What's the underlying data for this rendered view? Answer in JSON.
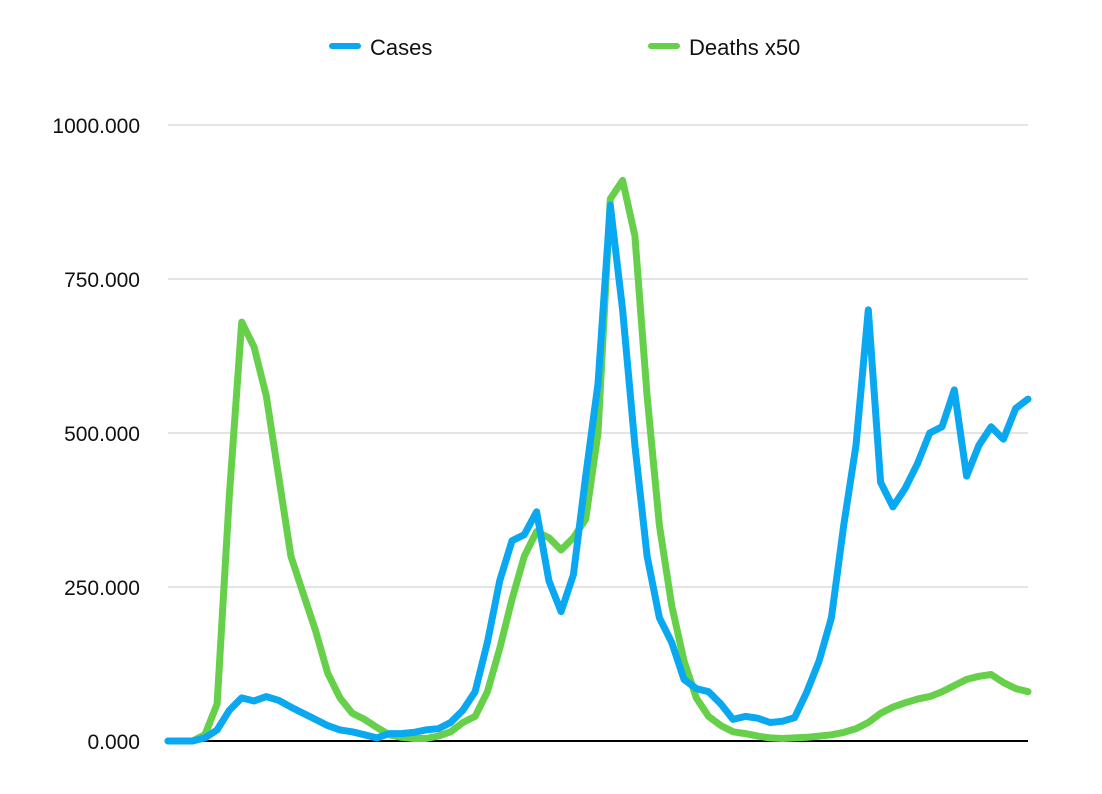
{
  "chart_data": {
    "type": "line",
    "title": "",
    "xlabel": "",
    "ylabel": "",
    "ylim": [
      0,
      1000
    ],
    "y_ticks": [
      0,
      250,
      500,
      750,
      1000
    ],
    "y_tick_labels": [
      "0.000",
      "250.000",
      "500.000",
      "750.000",
      "1000.000"
    ],
    "x_ticks_visible": false,
    "grid": "horizontal",
    "legend_position": "top-center",
    "x": [
      0,
      10,
      20,
      30,
      40,
      50,
      60,
      70,
      80,
      90,
      100,
      110,
      120,
      130,
      140,
      150,
      160,
      170,
      180,
      190,
      200,
      210,
      220,
      230,
      240,
      250,
      260,
      270,
      280,
      290,
      300,
      310,
      320,
      330,
      340,
      350,
      360,
      370,
      380,
      390,
      400,
      410,
      420,
      430,
      440,
      450,
      460,
      470,
      480,
      490,
      500
    ],
    "series": [
      {
        "name": "Cases",
        "color": "#0aa8f0",
        "values": [
          0,
          0,
          0,
          5,
          18,
          50,
          70,
          65,
          72,
          66,
          55,
          45,
          35,
          25,
          18,
          15,
          10,
          5,
          12,
          12,
          14,
          18,
          20,
          30,
          50,
          80,
          160,
          260,
          325,
          335,
          372,
          260,
          210,
          270,
          430,
          580,
          870,
          700,
          480,
          300,
          200,
          160,
          100,
          85,
          80,
          60,
          35,
          40,
          37,
          30,
          32
        ]
      },
      {
        "name": "Deaths x50",
        "color": "#66d04a",
        "values": [
          0,
          0,
          0,
          10,
          60,
          400,
          680,
          640,
          560,
          430,
          300,
          240,
          180,
          110,
          70,
          45,
          35,
          22,
          10,
          6,
          4,
          4,
          8,
          15,
          30,
          40,
          80,
          150,
          230,
          300,
          340,
          330,
          310,
          330,
          360,
          500,
          880,
          910,
          820,
          560,
          350,
          220,
          130,
          70,
          40,
          25,
          15,
          12,
          8,
          5,
          4
        ]
      }
    ],
    "tail": {
      "x": [
        510,
        520,
        530,
        540,
        550,
        560,
        570,
        580,
        590,
        600,
        610,
        620,
        630,
        640,
        650,
        660,
        670,
        680,
        690,
        700
      ],
      "Cases": [
        38,
        80,
        130,
        200,
        350,
        480,
        700,
        420,
        380,
        410,
        450,
        500,
        510,
        570,
        430,
        480,
        510,
        490,
        540,
        555
      ],
      "Deaths x50": [
        5,
        6,
        8,
        10,
        14,
        20,
        30,
        45,
        55,
        62,
        68,
        72,
        80,
        90,
        100,
        105,
        108,
        95,
        85,
        80
      ]
    }
  }
}
